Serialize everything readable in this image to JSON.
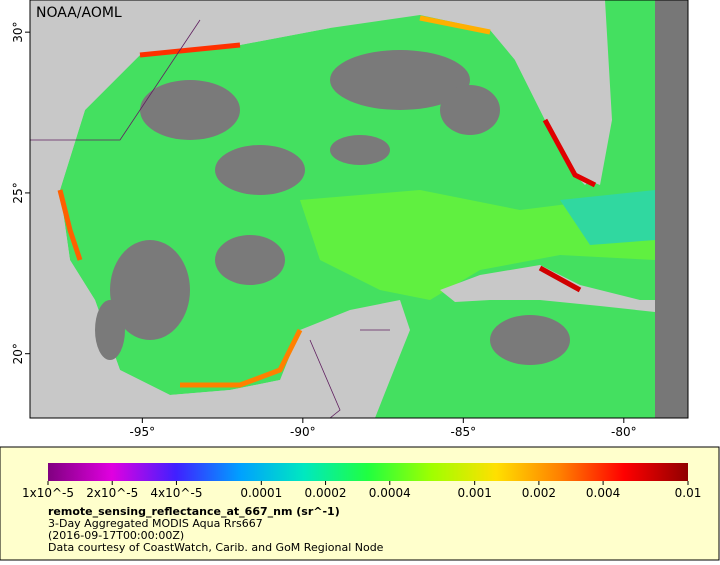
{
  "map": {
    "credit": "NOAA/AOML",
    "xlim": [
      -98.5,
      -78
    ],
    "ylim": [
      18,
      31
    ],
    "xticks": [
      {
        "value": -95,
        "label": "-95°"
      },
      {
        "value": -90,
        "label": "-90°"
      },
      {
        "value": -85,
        "label": "-85°"
      },
      {
        "value": -80,
        "label": "-80°"
      }
    ],
    "yticks": [
      {
        "value": 20,
        "label": "20°"
      },
      {
        "value": 25,
        "label": "25°"
      },
      {
        "value": 30,
        "label": "30°"
      }
    ]
  },
  "colorbar": {
    "scale": "log",
    "lim": [
      1e-05,
      0.01
    ],
    "colors": [
      "#800080",
      "#e000e0",
      "#4020ff",
      "#00a0ff",
      "#00e8c0",
      "#20ff40",
      "#a0ff00",
      "#ffe000",
      "#ff8000",
      "#ff0000",
      "#900000"
    ],
    "ticks": [
      {
        "value": 1e-05,
        "label": "1x10^-5"
      },
      {
        "value": 2e-05,
        "label": "2x10^-5"
      },
      {
        "value": 4e-05,
        "label": "4x10^-5"
      },
      0.0001,
      0.0002,
      0.0004,
      0.001,
      0.002,
      0.004,
      0.01
    ]
  },
  "caption": {
    "variable": "remote_sensing_reflectance_at_667_nm (sr^-1)",
    "dataset": "3-Day Aggregated MODIS Aqua Rrs667",
    "time": "(2016-09-17T00:00:00Z)",
    "courtesy": "Data courtesy of CoastWatch, Carib. and GoM Regional Node"
  }
}
